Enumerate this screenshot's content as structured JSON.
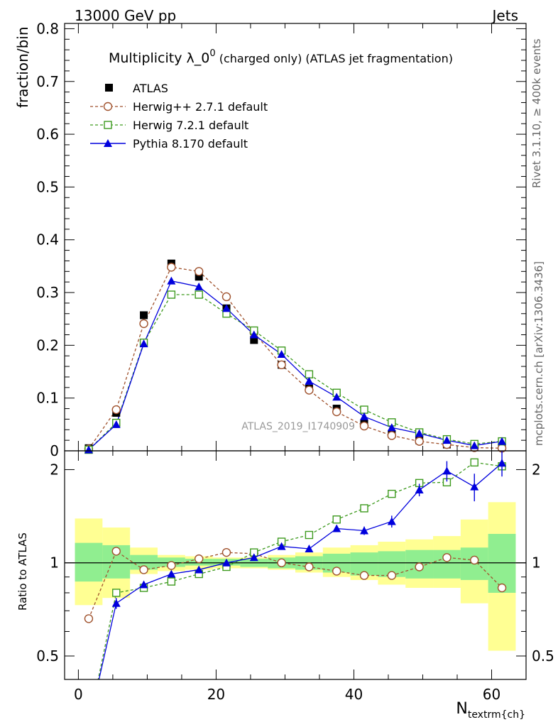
{
  "header": {
    "energy_label": "13000 GeV pp",
    "category_label": "Jets"
  },
  "side_labels": {
    "rivet": "Rivet 3.1.10, ≥ 400k events",
    "mcplots": "mcplots.cern.ch [arXiv:1306.3436]"
  },
  "chart_data": {
    "type": "scatter",
    "title": "Multiplicity λ_0",
    "title_sup": "0",
    "title_suffix": " (charged only) (ATLAS jet fragmentation)",
    "ylabel": "fraction/bin",
    "ratio_ylabel": "Ratio to ATLAS",
    "xlabel_main": "N",
    "xlabel_sub": "textrm{ch}",
    "analysis_label": "ATLAS_2019_I1740909",
    "xlim": [
      -2,
      65
    ],
    "ylim": [
      0,
      0.81
    ],
    "ratio_ylim": [
      0.42,
      2.3
    ],
    "x_ticks": [
      "0",
      "20",
      "40",
      "60"
    ],
    "y_ticks": [
      "0",
      "0.1",
      "0.2",
      "0.3",
      "0.4",
      "0.5",
      "0.6",
      "0.7",
      "0.8"
    ],
    "ratio_ticks": [
      "0.5",
      "1",
      "2"
    ],
    "x": [
      1.5,
      5.5,
      9.5,
      13.5,
      17.5,
      21.5,
      25.5,
      29.5,
      33.5,
      37.5,
      41.5,
      45.5,
      49.5,
      53.5,
      57.5,
      61.5
    ],
    "series": [
      {
        "name": "ATLAS",
        "color": "#000000",
        "marker": "filled-square",
        "values": [
          0.005,
          0.072,
          0.257,
          0.355,
          0.33,
          0.27,
          0.21,
          0.163,
          0.118,
          0.08,
          0.052,
          0.032,
          0.02,
          0.012,
          0.007,
          0.008
        ]
      },
      {
        "name": "Herwig++ 2.7.1 default",
        "color": "#a0522d",
        "marker": "open-circle",
        "values": [
          0.0035,
          0.078,
          0.241,
          0.348,
          0.34,
          0.292,
          0.224,
          0.163,
          0.115,
          0.074,
          0.047,
          0.029,
          0.018,
          0.012,
          0.006,
          0.005
        ],
        "ratio": [
          0.66,
          1.09,
          0.95,
          0.98,
          1.03,
          1.08,
          1.07,
          1.0,
          0.97,
          0.94,
          0.91,
          0.91,
          0.97,
          1.04,
          1.02,
          0.83
        ]
      },
      {
        "name": "Herwig 7.2.1 default",
        "color": "#3d9a1e",
        "marker": "open-square",
        "values": [
          0.002,
          0.053,
          0.205,
          0.296,
          0.296,
          0.26,
          0.228,
          0.19,
          0.145,
          0.11,
          0.078,
          0.054,
          0.035,
          0.022,
          0.013,
          0.018
        ],
        "ratio": [
          0.3,
          0.8,
          0.83,
          0.87,
          0.92,
          0.97,
          1.08,
          1.17,
          1.23,
          1.38,
          1.5,
          1.67,
          1.81,
          1.82,
          2.11,
          2.05
        ]
      },
      {
        "name": "Pythia 8.170 default",
        "color": "#0000dd",
        "marker": "filled-triangle",
        "values": [
          0.002,
          0.05,
          0.203,
          0.322,
          0.311,
          0.27,
          0.22,
          0.183,
          0.132,
          0.102,
          0.065,
          0.044,
          0.033,
          0.02,
          0.01,
          0.018
        ],
        "ratio": [
          0.3,
          0.74,
          0.85,
          0.92,
          0.95,
          1.0,
          1.04,
          1.13,
          1.11,
          1.29,
          1.27,
          1.36,
          1.72,
          1.98,
          1.76,
          2.1
        ],
        "ratio_err": [
          0,
          0.03,
          0.02,
          0.01,
          0.01,
          0.01,
          0.01,
          0.015,
          0.02,
          0.03,
          0.04,
          0.06,
          0.08,
          0.15,
          0.18,
          0.2
        ]
      }
    ],
    "bands": {
      "x_edges": [
        -0.5,
        3.5,
        7.5,
        11.5,
        15.5,
        19.5,
        23.5,
        27.5,
        31.5,
        35.5,
        39.5,
        43.5,
        47.5,
        51.5,
        55.5,
        59.5,
        63.5
      ],
      "stat_green": [
        [
          0.87,
          1.16
        ],
        [
          0.89,
          1.14
        ],
        [
          0.95,
          1.06
        ],
        [
          0.97,
          1.04
        ],
        [
          0.98,
          1.03
        ],
        [
          0.98,
          1.03
        ],
        [
          0.97,
          1.03
        ],
        [
          0.96,
          1.04
        ],
        [
          0.95,
          1.05
        ],
        [
          0.93,
          1.07
        ],
        [
          0.91,
          1.08
        ],
        [
          0.9,
          1.09
        ],
        [
          0.89,
          1.1
        ],
        [
          0.89,
          1.1
        ],
        [
          0.88,
          1.12
        ],
        [
          0.8,
          1.24
        ]
      ],
      "total_yellow": [
        [
          0.73,
          1.39
        ],
        [
          0.77,
          1.3
        ],
        [
          0.92,
          1.12
        ],
        [
          0.94,
          1.06
        ],
        [
          0.95,
          1.05
        ],
        [
          0.96,
          1.04
        ],
        [
          0.96,
          1.04
        ],
        [
          0.95,
          1.06
        ],
        [
          0.93,
          1.08
        ],
        [
          0.9,
          1.12
        ],
        [
          0.88,
          1.14
        ],
        [
          0.85,
          1.17
        ],
        [
          0.83,
          1.19
        ],
        [
          0.83,
          1.22
        ],
        [
          0.74,
          1.38
        ],
        [
          0.52,
          1.57
        ]
      ]
    },
    "grid": false,
    "legend_position": "top-left"
  }
}
